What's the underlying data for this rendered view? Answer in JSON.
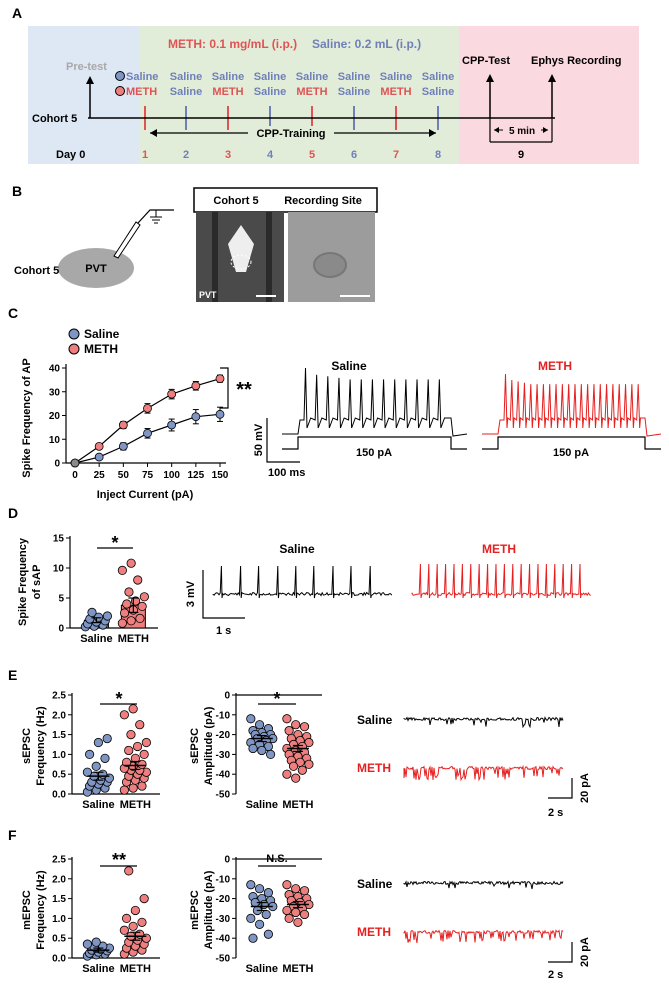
{
  "panels": [
    "A",
    "B",
    "C",
    "D",
    "E",
    "F"
  ],
  "colors": {
    "saline": "#7f96c4",
    "meth": "#ef7f7f",
    "saline_text": "#6f80b8",
    "meth_text": "#e05353",
    "meth_trace": "#e62020",
    "phase_pre": "#dde8f4",
    "phase_train": "#e2edd9",
    "phase_test": "#fbd9e0"
  },
  "panelA": {
    "dose_meth": "METH: 0.1 mg/mL (i.p.)",
    "dose_saline": "Saline: 0.2 mL (i.p.)",
    "pretest": "Pre-test",
    "cohort": "Cohort 5",
    "day0": "Day 0",
    "saline_label": "Saline",
    "meth_label": "METH",
    "row_top": [
      "Saline",
      "Saline",
      "Saline",
      "Saline",
      "Saline",
      "Saline",
      "Saline",
      "Saline"
    ],
    "row_bottom": [
      "METH",
      "Saline",
      "METH",
      "Saline",
      "METH",
      "Saline",
      "METH",
      "Saline"
    ],
    "days": [
      "1",
      "2",
      "3",
      "4",
      "5",
      "6",
      "7",
      "8"
    ],
    "cpp_training": "CPP-Training",
    "cpp_test": "CPP-Test",
    "ephys": "Ephys Recording",
    "interval": "5 min",
    "day9": "9"
  },
  "panelB": {
    "cohort": "Cohort 5",
    "region": "PVT",
    "header_left": "Cohort 5",
    "header_right": "Recording Site",
    "image_label": "PVT"
  },
  "panelC": {
    "legend": [
      "Saline",
      "METH"
    ],
    "ylabel": "Spike Frequency of AP",
    "xlabel": "Inject Current (pA)",
    "significance": "**",
    "trace_saline_title": "Saline",
    "trace_meth_title": "METH",
    "step_label": "150 pA",
    "scale_v": "50 mV",
    "scale_t": "100 ms"
  },
  "panelD": {
    "ylabel_line1": "Spike Frequency",
    "ylabel_line2": "of sAP",
    "significance": "*",
    "trace_saline_title": "Saline",
    "trace_meth_title": "METH",
    "scale_v": "3 mV",
    "scale_t": "1 s"
  },
  "panelE": {
    "freq_ylabel_line1": "sEPSC",
    "freq_ylabel_line2": "Frequency (Hz)",
    "amp_ylabel_line1": "sEPSC",
    "amp_ylabel_line2": "Amplitude (pA)",
    "freq_sig": "*",
    "amp_sig": "*",
    "trace_saline": "Saline",
    "trace_meth": "METH",
    "scale_i": "20 pA",
    "scale_t": "2 s"
  },
  "panelF": {
    "freq_ylabel_line1": "mEPSC",
    "freq_ylabel_line2": "Frequency (Hz)",
    "amp_ylabel_line1": "mEPSC",
    "amp_ylabel_line2": "Amplitude (pA)",
    "freq_sig": "**",
    "amp_sig": "N.S.",
    "trace_saline": "Saline",
    "trace_meth": "METH",
    "scale_i": "20 pA",
    "scale_t": "2 s"
  },
  "chart_data": [
    {
      "id": "C",
      "type": "line",
      "x": [
        0,
        25,
        50,
        75,
        100,
        125,
        150
      ],
      "series": [
        {
          "name": "Saline",
          "values": [
            0,
            2.5,
            7,
            12.5,
            16,
            19.5,
            20.5
          ],
          "sem": [
            0,
            1,
            1.5,
            2,
            2.5,
            3,
            3
          ]
        },
        {
          "name": "METH",
          "values": [
            0,
            7,
            16,
            23,
            29,
            32.5,
            35.5
          ],
          "sem": [
            0,
            1,
            1.5,
            2,
            2,
            1.8,
            1.5
          ]
        }
      ],
      "xlabel": "Inject Current (pA)",
      "ylabel": "Spike Frequency of AP",
      "xticks": [
        "0",
        "25",
        "50",
        "75",
        "100",
        "125",
        "150"
      ],
      "yticks": [
        "0",
        "10",
        "20",
        "30",
        "40"
      ],
      "xlim": [
        0,
        150
      ],
      "ylim": [
        0,
        40
      ],
      "legend": "top-left"
    },
    {
      "id": "D",
      "type": "bar",
      "categories": [
        "Saline",
        "METH"
      ],
      "values": [
        1.3,
        3.8
      ],
      "sem": [
        0.4,
        1.2
      ],
      "points": [
        [
          0.2,
          0.3,
          0.5,
          0.7,
          1.0,
          1.2,
          1.5,
          1.8,
          2.0,
          2.6
        ],
        [
          0.8,
          1.2,
          1.6,
          2.5,
          3.0,
          3.6,
          4.0,
          4.5,
          5.2,
          6.0,
          8.0,
          9.6,
          10.8
        ]
      ],
      "yticks": [
        "0",
        "5",
        "10",
        "15"
      ],
      "ylim": [
        0,
        15
      ]
    },
    {
      "id": "E-freq",
      "type": "scatter",
      "categories": [
        "Saline",
        "METH"
      ],
      "values": [
        0.45,
        0.72
      ],
      "sem": [
        0.1,
        0.1
      ],
      "points": [
        [
          0.05,
          0.1,
          0.15,
          0.2,
          0.25,
          0.3,
          0.3,
          0.35,
          0.4,
          0.45,
          0.5,
          0.55,
          0.7,
          0.9,
          1.0,
          1.3,
          1.4
        ],
        [
          0.1,
          0.15,
          0.2,
          0.3,
          0.35,
          0.4,
          0.45,
          0.5,
          0.55,
          0.6,
          0.6,
          0.65,
          0.7,
          0.75,
          0.8,
          0.9,
          1.0,
          1.1,
          1.2,
          1.3,
          1.5,
          1.75,
          2.0,
          2.15
        ]
      ],
      "yticks": [
        "0.0",
        "0.5",
        "1.0",
        "1.5",
        "2.0",
        "2.5"
      ],
      "ylim": [
        0,
        2.5
      ]
    },
    {
      "id": "E-amp",
      "type": "scatter",
      "categories": [
        "Saline",
        "METH"
      ],
      "values": [
        -22,
        -27
      ],
      "sem": [
        1.5,
        1.5
      ],
      "points": [
        [
          -12,
          -15,
          -17,
          -18,
          -19,
          -20,
          -20,
          -21,
          -22,
          -22,
          -23,
          -24,
          -25,
          -26,
          -27,
          -28,
          -30
        ],
        [
          -12,
          -15,
          -16,
          -18,
          -20,
          -21,
          -22,
          -23,
          -24,
          -25,
          -26,
          -27,
          -28,
          -29,
          -30,
          -31,
          -32,
          -33,
          -34,
          -35,
          -36,
          -38,
          -40,
          -42
        ]
      ],
      "yticks": [
        "0",
        "-10",
        "-20",
        "-30",
        "-40",
        "-50"
      ],
      "ylim": [
        -50,
        0
      ]
    },
    {
      "id": "F-freq",
      "type": "scatter",
      "categories": [
        "Saline",
        "METH"
      ],
      "values": [
        0.2,
        0.55
      ],
      "sem": [
        0.05,
        0.1
      ],
      "points": [
        [
          0.05,
          0.08,
          0.1,
          0.12,
          0.15,
          0.18,
          0.2,
          0.22,
          0.25,
          0.28,
          0.3,
          0.35,
          0.4
        ],
        [
          0.1,
          0.15,
          0.2,
          0.25,
          0.3,
          0.35,
          0.4,
          0.45,
          0.5,
          0.55,
          0.6,
          0.7,
          0.8,
          0.9,
          1.0,
          1.2,
          1.5,
          2.2
        ]
      ],
      "yticks": [
        "0.0",
        "0.5",
        "1.0",
        "1.5",
        "2.0",
        "2.5"
      ],
      "ylim": [
        0,
        2.5
      ]
    },
    {
      "id": "F-amp",
      "type": "scatter",
      "categories": [
        "Saline",
        "METH"
      ],
      "values": [
        -24,
        -23
      ],
      "sem": [
        2,
        1.5
      ],
      "points": [
        [
          -13,
          -15,
          -17,
          -19,
          -20,
          -21,
          -22,
          -23,
          -24,
          -26,
          -28,
          -30,
          -33,
          -38,
          -40
        ],
        [
          -13,
          -15,
          -16,
          -18,
          -19,
          -20,
          -21,
          -22,
          -23,
          -24,
          -25,
          -26,
          -27,
          -28,
          -30,
          -32
        ]
      ],
      "yticks": [
        "0",
        "-10",
        "-20",
        "-30",
        "-40",
        "-50"
      ],
      "ylim": [
        -50,
        0
      ]
    }
  ]
}
